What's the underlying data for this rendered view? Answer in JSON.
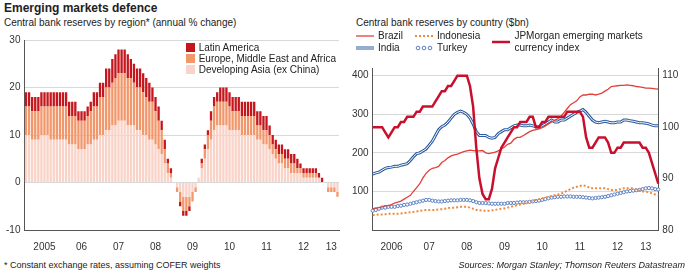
{
  "title": "Emerging markets defence",
  "footnote": "* Constant exchange rates, assuming COFER weights",
  "source": "Sources: Morgan Stanley; Thomson Reuters Datastream",
  "chart_data": [
    {
      "type": "bar",
      "title": "Central bank reserves by region* (annual % change)",
      "stacked": true,
      "legend": "top right",
      "grid": true,
      "ylim": [
        -10,
        30
      ],
      "yticks": [
        -10,
        0,
        10,
        20,
        30
      ],
      "categories": [
        null,
        null,
        null,
        null,
        null,
        null,
        "2005",
        null,
        null,
        null,
        null,
        null,
        null,
        null,
        null,
        null,
        null,
        null,
        "06",
        null,
        null,
        null,
        null,
        null,
        null,
        null,
        null,
        null,
        null,
        null,
        "07",
        null,
        null,
        null,
        null,
        null,
        null,
        null,
        null,
        null,
        null,
        null,
        "08",
        null,
        null,
        null,
        null,
        null,
        null,
        null,
        null,
        null,
        null,
        null,
        "09",
        null,
        null,
        null,
        null,
        null,
        null,
        null,
        null,
        null,
        null,
        null,
        "10",
        null,
        null,
        null,
        null,
        null,
        null,
        null,
        null,
        null,
        null,
        null,
        "11",
        null,
        null,
        null,
        null,
        null,
        null,
        null,
        null,
        null,
        null,
        null,
        "12",
        null,
        null,
        null,
        null,
        null,
        null,
        null,
        null,
        "13",
        null,
        null
      ],
      "series": [
        {
          "name": "Latin America",
          "color": "#c4161c",
          "values": [
            3,
            3,
            3,
            3,
            3,
            3,
            3,
            3,
            3,
            3,
            3,
            3,
            3,
            3,
            3,
            3,
            3,
            2,
            2,
            2,
            2,
            2,
            3,
            3,
            3,
            3,
            4,
            4,
            5,
            5,
            5,
            5,
            5,
            5,
            4,
            4,
            4,
            4,
            4,
            4,
            4,
            3,
            3,
            3,
            2,
            2,
            1,
            1,
            0,
            0,
            -1,
            -1,
            -1,
            -1,
            0,
            0,
            0,
            1,
            1,
            1,
            2,
            2,
            2,
            3,
            3,
            3,
            3,
            3,
            3,
            3,
            3,
            3,
            3,
            3,
            3,
            3,
            3,
            3,
            3,
            2,
            2,
            2,
            2,
            2,
            2,
            2,
            2,
            2,
            2,
            1,
            1,
            1,
            1,
            1,
            1,
            1,
            1,
            0,
            0,
            0,
            0,
            0
          ]
        },
        {
          "name": "Europe, Middle East and Africa",
          "color": "#f2976b",
          "values": [
            6,
            6,
            6,
            6,
            6,
            6,
            6,
            6,
            7,
            7,
            7,
            7,
            7,
            7,
            6,
            6,
            6,
            6,
            6,
            6,
            6,
            7,
            7,
            7,
            8,
            8,
            9,
            9,
            9,
            10,
            10,
            10,
            10,
            10,
            10,
            9,
            9,
            9,
            9,
            8,
            8,
            8,
            7,
            6,
            5,
            3,
            2,
            1,
            0,
            -1,
            -2,
            -3,
            -3,
            -2,
            -2,
            -1,
            0,
            1,
            2,
            3,
            4,
            5,
            5,
            5,
            5,
            5,
            5,
            4,
            4,
            4,
            4,
            4,
            4,
            4,
            4,
            3,
            3,
            3,
            3,
            3,
            2,
            2,
            2,
            2,
            2,
            2,
            2,
            2,
            1,
            1,
            1,
            1,
            1,
            1,
            1,
            0,
            0,
            0,
            -1,
            -1,
            -1,
            -1
          ]
        },
        {
          "name": "Developing Asia (ex China)",
          "color": "#f9d3c8",
          "values": [
            10,
            10,
            9,
            9,
            9,
            10,
            10,
            10,
            9,
            9,
            9,
            9,
            9,
            9,
            8,
            8,
            8,
            7,
            7,
            7,
            8,
            8,
            9,
            9,
            10,
            10,
            11,
            11,
            12,
            12,
            13,
            13,
            13,
            12,
            12,
            12,
            11,
            11,
            10,
            10,
            9,
            9,
            8,
            7,
            6,
            4,
            2,
            1,
            0,
            -1,
            -2,
            -3,
            -3,
            -3,
            -2,
            -1,
            1,
            3,
            5,
            7,
            9,
            11,
            12,
            12,
            12,
            12,
            11,
            11,
            11,
            11,
            10,
            10,
            10,
            10,
            10,
            9,
            9,
            8,
            8,
            7,
            6,
            5,
            4,
            4,
            3,
            3,
            2,
            2,
            2,
            2,
            1,
            1,
            1,
            1,
            1,
            1,
            0,
            0,
            -1,
            -1,
            -1,
            -2
          ]
        }
      ]
    },
    {
      "type": "line",
      "title": "Central bank reserves by country ($bn)",
      "legend": "top",
      "grid": true,
      "ylim": [
        0,
        420
      ],
      "yticks": [
        100,
        200,
        300,
        400
      ],
      "y2lim": [
        80,
        111.5
      ],
      "y2ticks": [
        80,
        90,
        100,
        110
      ],
      "categories": [
        null,
        null,
        null,
        null,
        null,
        null,
        "2006",
        null,
        null,
        null,
        null,
        null,
        null,
        null,
        null,
        null,
        null,
        null,
        "07",
        null,
        null,
        null,
        null,
        null,
        null,
        null,
        null,
        null,
        null,
        null,
        "08",
        null,
        null,
        null,
        null,
        null,
        null,
        null,
        null,
        null,
        null,
        null,
        "09",
        null,
        null,
        null,
        null,
        null,
        null,
        null,
        null,
        null,
        null,
        null,
        "10",
        null,
        null,
        null,
        null,
        null,
        null,
        null,
        null,
        null,
        null,
        null,
        "11",
        null,
        null,
        null,
        null,
        null,
        null,
        null,
        null,
        null,
        null,
        null,
        "12",
        null,
        null,
        null,
        null,
        null,
        null,
        null,
        null,
        "13",
        null,
        null,
        null,
        null
      ],
      "series": [
        {
          "name": "Brazil",
          "color": "#e0403a",
          "line_style": "solid",
          "values": [
            55,
            57,
            58,
            60,
            63,
            63,
            66,
            70,
            72,
            75,
            80,
            85,
            90,
            100,
            110,
            120,
            135,
            147,
            155,
            160,
            162,
            165,
            175,
            180,
            187,
            192,
            195,
            197,
            200,
            203,
            205,
            207,
            206,
            205,
            205,
            206,
            200,
            198,
            200,
            202,
            205,
            210,
            215,
            222,
            225,
            235,
            240,
            240,
            245,
            250,
            255,
            258,
            260,
            262,
            265,
            270,
            275,
            280,
            285,
            288,
            295,
            305,
            315,
            325,
            330,
            335,
            345,
            350,
            350,
            352,
            352,
            350,
            352,
            355,
            360,
            365,
            372,
            373,
            374,
            375,
            375,
            376,
            375,
            374,
            372,
            371,
            370,
            368,
            368,
            367,
            366,
            365
          ]
        },
        {
          "name": "India",
          "color": "#2c5aa0",
          "line_style": "double",
          "values": [
            145,
            148,
            150,
            155,
            160,
            162,
            163,
            165,
            165,
            168,
            170,
            172,
            180,
            190,
            198,
            200,
            205,
            210,
            220,
            230,
            245,
            260,
            268,
            272,
            280,
            290,
            300,
            305,
            308,
            305,
            300,
            290,
            275,
            255,
            245,
            245,
            245,
            240,
            238,
            240,
            250,
            255,
            260,
            260,
            265,
            270,
            272,
            272,
            270,
            270,
            272,
            270,
            268,
            268,
            270,
            275,
            280,
            285,
            280,
            280,
            285,
            285,
            290,
            295,
            300,
            305,
            308,
            312,
            305,
            295,
            285,
            280,
            278,
            280,
            282,
            280,
            278,
            278,
            280,
            280,
            285,
            285,
            283,
            282,
            280,
            278,
            278,
            277,
            275,
            272,
            270,
            270
          ]
        },
        {
          "name": "Indonesia",
          "color": "#f08a3c",
          "line_style": "dotted",
          "values": [
            38,
            39,
            40,
            40,
            41,
            42,
            42,
            42,
            42,
            43,
            44,
            45,
            46,
            47,
            48,
            50,
            51,
            52,
            52,
            52,
            52,
            53,
            54,
            55,
            57,
            58,
            58,
            59,
            60,
            60,
            60,
            58,
            55,
            52,
            51,
            50,
            50,
            50,
            51,
            52,
            54,
            55,
            56,
            58,
            60,
            62,
            64,
            66,
            68,
            70,
            72,
            76,
            78,
            80,
            82,
            84,
            86,
            88,
            90,
            92,
            94,
            98,
            102,
            106,
            110,
            112,
            114,
            116,
            114,
            110,
            108,
            108,
            108,
            108,
            108,
            106,
            104,
            104,
            104,
            106,
            108,
            108,
            108,
            108,
            105,
            102,
            100,
            99,
            98,
            95,
            92,
            90
          ]
        },
        {
          "name": "Turkey",
          "color": "#5b7fc0",
          "marker": "circle",
          "line_style": "none",
          "values": [
            50,
            52,
            55,
            58,
            58,
            60,
            60,
            60,
            62,
            63,
            65,
            66,
            68,
            70,
            72,
            74,
            76,
            78,
            78,
            76,
            75,
            74,
            74,
            75,
            76,
            77,
            77,
            77,
            78,
            78,
            78,
            77,
            75,
            72,
            70,
            70,
            70,
            69,
            68,
            68,
            68,
            68,
            68,
            70,
            70,
            70,
            71,
            72,
            72,
            72,
            73,
            74,
            75,
            76,
            78,
            80,
            82,
            84,
            85,
            86,
            86,
            87,
            87,
            87,
            86,
            86,
            86,
            85,
            84,
            83,
            82,
            83,
            84,
            85,
            86,
            88,
            90,
            92,
            94,
            96,
            98,
            100,
            101,
            102,
            103,
            104,
            106,
            108,
            109,
            108,
            106,
            105
          ]
        },
        {
          "name": "JPMorgan emerging markets currency index",
          "color": "#c8102e",
          "line_style": "solid",
          "axis": "y2",
          "values": [
            100,
            100,
            100,
            100,
            99,
            98,
            99,
            100,
            100,
            101,
            101,
            102,
            102,
            102,
            103,
            103,
            104,
            104,
            104,
            104,
            105,
            106,
            107,
            107,
            108,
            108,
            109,
            110,
            110,
            110,
            110,
            108,
            104,
            96,
            90,
            87,
            86,
            86,
            88,
            92,
            94,
            96,
            97,
            98,
            99,
            100,
            100,
            101,
            101,
            101,
            102,
            102,
            100,
            100,
            101,
            101,
            102,
            102,
            102,
            102,
            102,
            102,
            103,
            103,
            103,
            103,
            103,
            102,
            98,
            96,
            96,
            97,
            98,
            98,
            98,
            97,
            95,
            95,
            96,
            96,
            97,
            97,
            97,
            97,
            97,
            97,
            96,
            96,
            95,
            93,
            91,
            89
          ]
        }
      ]
    }
  ]
}
